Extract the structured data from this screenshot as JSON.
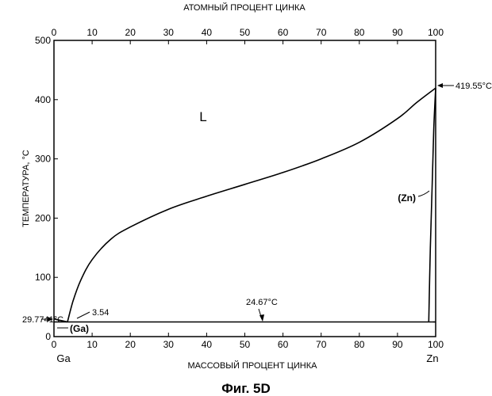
{
  "top_axis": {
    "label": "АТОМНЫЙ ПРОЦЕНТ ЦИНКА",
    "ticks": [
      0,
      10,
      20,
      30,
      40,
      50,
      60,
      70,
      80,
      90,
      100
    ]
  },
  "bottom_axis": {
    "label": "МАССОВЫЙ ПРОЦЕНТ ЦИНКА",
    "ticks": [
      0,
      10,
      20,
      30,
      40,
      50,
      60,
      70,
      80,
      90,
      100
    ],
    "left_element": "Ga",
    "right_element": "Zn"
  },
  "y_axis": {
    "label": "ТЕМПЕРАТУРА, °C",
    "ticks": [
      0,
      100,
      200,
      300,
      400,
      500
    ]
  },
  "annotations": {
    "liquid": "L",
    "zn_phase": "(Zn)",
    "ga_phase": "(Ga)",
    "zn_melt": "419.55°C",
    "ga_melt": "29.7741°C",
    "eutectic_comp": "3.54",
    "eutectic_temp": "24.67°C"
  },
  "caption": "Фиг. 5D",
  "chart_data": {
    "type": "line",
    "xlim": [
      0,
      100
    ],
    "ylim": [
      0,
      500
    ],
    "series": [
      {
        "x": [
          3.54,
          5,
          7,
          10,
          15,
          20,
          30,
          40,
          50,
          60,
          70,
          80,
          90,
          95,
          100
        ],
        "y": [
          24.67,
          60,
          95,
          130,
          165,
          185,
          215,
          237,
          257,
          277,
          300,
          328,
          368,
          395,
          419.55
        ]
      },
      {
        "x": [
          0,
          3.54
        ],
        "y": [
          29.77,
          24.67
        ]
      },
      {
        "x": [
          0,
          99
        ],
        "y": [
          24.67,
          24.67
        ]
      },
      {
        "x": [
          98.2,
          98.6,
          99.1,
          99.5,
          100
        ],
        "y": [
          24.67,
          150,
          260,
          350,
          419.55
        ]
      },
      {
        "x": [
          99,
          100
        ],
        "y": [
          24.67,
          24.67
        ]
      }
    ]
  }
}
